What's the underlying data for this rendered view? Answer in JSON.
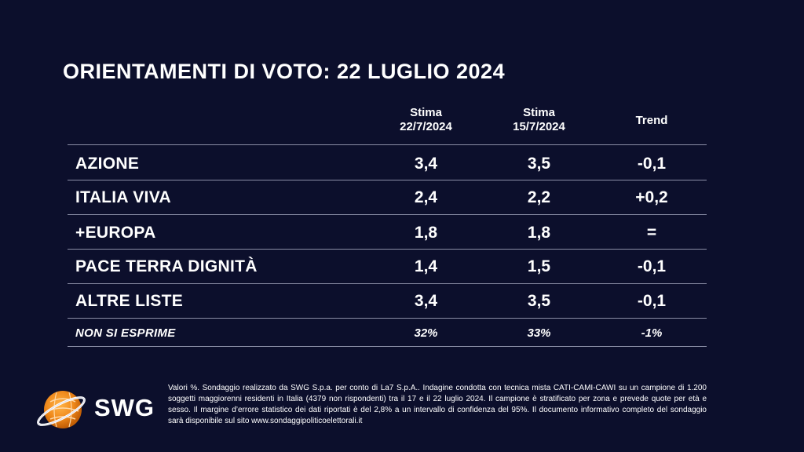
{
  "title": "ORIENTAMENTI DI VOTO: 22 LUGLIO 2024",
  "table": {
    "headers": {
      "col1_line1": "Stima",
      "col1_line2": "22/7/2024",
      "col2_line1": "Stima",
      "col2_line2": "15/7/2024",
      "col3": "Trend"
    },
    "rows": [
      {
        "label": "AZIONE",
        "stima_22": "3,4",
        "stima_15": "3,5",
        "trend": "-0,1"
      },
      {
        "label": "ITALIA VIVA",
        "stima_22": "2,4",
        "stima_15": "2,2",
        "trend": "+0,2"
      },
      {
        "label": "+EUROPA",
        "stima_22": "1,8",
        "stima_15": "1,8",
        "trend": "="
      },
      {
        "label": "PACE TERRA DIGNITÀ",
        "stima_22": "1,4",
        "stima_15": "1,5",
        "trend": "-0,1"
      },
      {
        "label": "ALTRE LISTE",
        "stima_22": "3,4",
        "stima_15": "3,5",
        "trend": "-0,1"
      },
      {
        "label": "NON SI ESPRIME",
        "stima_22": "32%",
        "stima_15": "33%",
        "trend": "-1%"
      }
    ]
  },
  "logo": {
    "text": "SWG",
    "icon": "swg-globe-icon"
  },
  "footnote": "Valori %. Sondaggio realizzato da SWG S.p.a. per conto di La7 S.p.A.. Indagine condotta con tecnica mista CATI-CAMI-CAWI su un campione di 1.200 soggetti maggiorenni residenti in Italia (4379 non rispondenti) tra il 17 e il 22 luglio 2024. Il campione è stratificato per zona e prevede quote per età e sesso. Il margine d’errore statistico dei dati riportati è del 2,8% a un intervallo di confidenza del 95%. Il documento informativo completo del sondaggio sarà disponibile sul sito www.sondaggipoliticoelettorali.it",
  "colors": {
    "background": "#0c0f2c",
    "text": "#ffffff",
    "divider": "#8a8ea6",
    "logo_orange": "#f08a1c"
  }
}
